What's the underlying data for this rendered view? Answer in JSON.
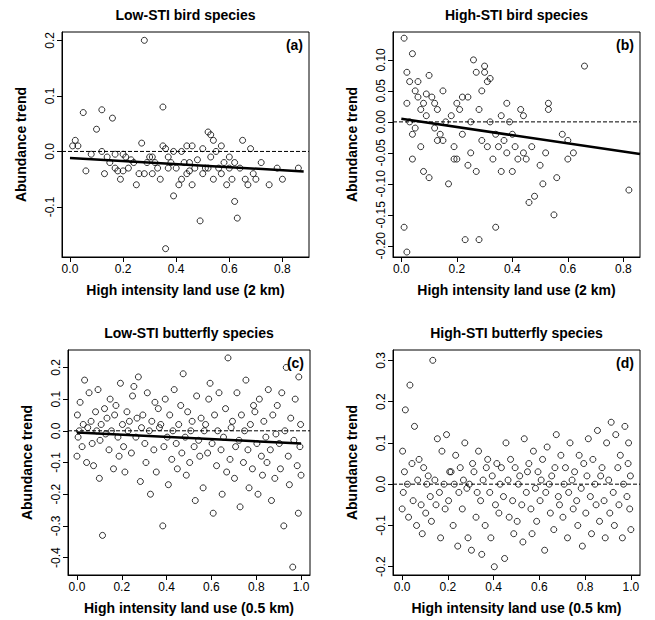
{
  "chart_data": [
    {
      "type": "scatter",
      "title": "Low-STI bird species",
      "panel_label": "(a)",
      "x_label": "High intensity land use (2 km)",
      "y_label": "Abundance trend",
      "xlim": [
        -0.03,
        0.9
      ],
      "xticks": [
        {
          "value": 0,
          "label": "0.0"
        },
        0.2,
        0.4,
        0.6,
        0.8
      ],
      "ylim": [
        -0.19,
        0.215
      ],
      "yticks": [
        -0.1,
        {
          "value": 0,
          "label": "0.0"
        },
        0.1,
        0.2
      ],
      "grid": false,
      "color": "#000000",
      "marker": "circle",
      "x": [
        0.01,
        0.02,
        0.03,
        0.05,
        0.06,
        0.1,
        0.08,
        0.12,
        0.15,
        0.14,
        0.17,
        0.17,
        0.18,
        0.2,
        0.2,
        0.22,
        0.23,
        0.24,
        0.25,
        0.26,
        0.27,
        0.28,
        0.28,
        0.29,
        0.3,
        0.31,
        0.32,
        0.33,
        0.34,
        0.35,
        0.35,
        0.36,
        0.36,
        0.37,
        0.37,
        0.38,
        0.39,
        0.39,
        0.4,
        0.41,
        0.42,
        0.42,
        0.43,
        0.44,
        0.45,
        0.45,
        0.46,
        0.47,
        0.48,
        0.49,
        0.5,
        0.5,
        0.51,
        0.52,
        0.53,
        0.53,
        0.54,
        0.54,
        0.55,
        0.56,
        0.57,
        0.57,
        0.58,
        0.59,
        0.6,
        0.61,
        0.62,
        0.62,
        0.63,
        0.64,
        0.65,
        0.66,
        0.67,
        0.68,
        0.69,
        0.7,
        0.72,
        0.75,
        0.78,
        0.8,
        0.86,
        0.12,
        0.13,
        0.16,
        0.19,
        0.21,
        0.31,
        0.44,
        0.46,
        0.52,
        0.6
      ],
      "values": [
        0.01,
        0.02,
        0.01,
        0.07,
        -0.035,
        0.04,
        -0.005,
        0,
        -0.02,
        -0.01,
        -0.005,
        -0.03,
        -0.035,
        -0.005,
        -0.035,
        -0.03,
        -0.015,
        -0.02,
        -0.06,
        -0.04,
        0.015,
        0.2,
        -0.04,
        -0.02,
        -0.01,
        -0.04,
        -0.02,
        -0.03,
        -0.05,
        0.08,
        0.01,
        0.005,
        -0.175,
        -0.01,
        -0.03,
        -0.02,
        0,
        -0.08,
        -0.03,
        -0.06,
        0,
        -0.05,
        -0.02,
        -0.04,
        -0.02,
        -0.035,
        -0.06,
        -0.03,
        -0.015,
        -0.125,
        -0.04,
        0.005,
        -0.03,
        0.035,
        0.03,
        -0.01,
        0.02,
        -0.05,
        0,
        -0.03,
        0.01,
        -0.04,
        -0.02,
        -0.06,
        -0.01,
        -0.05,
        -0.02,
        -0.09,
        -0.12,
        -0.03,
        0.02,
        -0.05,
        -0.06,
        0.005,
        -0.04,
        -0.05,
        -0.02,
        -0.06,
        -0.03,
        -0.05,
        -0.03,
        0.075,
        -0.04,
        0.06,
        -0.05,
        -0.01,
        -0.01,
        0.01,
        0.01,
        -0.03,
        -0.03
      ],
      "fit": {
        "x": [
          0,
          0.88
        ],
        "values": [
          -0.012,
          -0.036
        ],
        "line_style": "solid"
      },
      "reference_line": {
        "y": 0,
        "line_style": "dashed"
      }
    },
    {
      "type": "scatter",
      "title": "High-STI bird species",
      "panel_label": "(b)",
      "x_label": "High intensity land use (2 km)",
      "y_label": "Abundance trend",
      "xlim": [
        -0.03,
        0.86
      ],
      "xticks": [
        {
          "value": 0,
          "label": "0.0"
        },
        0.2,
        0.4,
        0.6,
        0.8
      ],
      "ylim": [
        -0.218,
        0.145
      ],
      "yticks": [
        {
          "value": -0.2,
          "label": "-0.20"
        },
        -0.15,
        {
          "value": -0.1,
          "label": "-0.10"
        },
        -0.05,
        {
          "value": 0,
          "label": "0.00"
        },
        0.05,
        {
          "value": 0.1,
          "label": "0.10"
        }
      ],
      "grid": false,
      "color": "#000000",
      "marker": "circle",
      "x": [
        0.01,
        0.01,
        0.02,
        0.02,
        0.02,
        0.03,
        0.03,
        0.04,
        0.04,
        0.05,
        0.05,
        0.06,
        0.06,
        0.07,
        0.07,
        0.08,
        0.08,
        0.09,
        0.09,
        0.1,
        0.1,
        0.11,
        0.12,
        0.12,
        0.13,
        0.14,
        0.15,
        0.15,
        0.16,
        0.17,
        0.18,
        0.19,
        0.2,
        0.2,
        0.21,
        0.22,
        0.23,
        0.24,
        0.25,
        0.25,
        0.26,
        0.27,
        0.27,
        0.28,
        0.28,
        0.29,
        0.29,
        0.3,
        0.3,
        0.31,
        0.31,
        0.32,
        0.32,
        0.33,
        0.34,
        0.34,
        0.35,
        0.36,
        0.37,
        0.38,
        0.39,
        0.4,
        0.4,
        0.41,
        0.42,
        0.43,
        0.44,
        0.45,
        0.46,
        0.47,
        0.5,
        0.52,
        0.53,
        0.53,
        0.55,
        0.56,
        0.58,
        0.6,
        0.6,
        0.62,
        0.66,
        0.82,
        0.04,
        0.13,
        0.19,
        0.22,
        0.24,
        0.36,
        0.38,
        0.44,
        0.48,
        0.51
      ],
      "values": [
        0.135,
        -0.17,
        -0.21,
        0.08,
        0.03,
        0.065,
        0,
        0.11,
        -0.02,
        0.05,
        -0.01,
        0.04,
        0.065,
        -0.04,
        0.02,
        -0.08,
        0.03,
        0.01,
        0.045,
        -0.09,
        0.075,
        0.04,
        -0.01,
        0.03,
        0.02,
        -0.02,
        0.05,
        -0.03,
        0,
        -0.1,
        0.01,
        -0.04,
        0.03,
        -0.06,
        0.02,
        -0.02,
        -0.19,
        0.04,
        0,
        -0.05,
        0.1,
        0.08,
        -0.08,
        0.02,
        -0.19,
        0.05,
        -0.03,
        0.09,
        0.08,
        0.065,
        -0.04,
        0.07,
        0,
        -0.06,
        -0.02,
        -0.17,
        -0.04,
        0.01,
        -0.03,
        -0.05,
        0,
        -0.02,
        -0.08,
        -0.04,
        -0.06,
        0.02,
        -0.05,
        -0.06,
        -0.13,
        -0.04,
        -0.07,
        -0.05,
        0.03,
        0.02,
        -0.15,
        -0.09,
        -0.02,
        -0.06,
        -0.03,
        -0.05,
        0.09,
        -0.11,
        -0.06,
        -0.03,
        -0.06,
        0.04,
        -0.07,
        -0.08,
        0.03,
        0.01,
        -0.12,
        -0.1
      ],
      "fit": {
        "x": [
          0,
          0.86
        ],
        "values": [
          0.005,
          -0.052
        ],
        "line_style": "solid"
      },
      "reference_line": {
        "y": 0,
        "line_style": "dashed"
      }
    },
    {
      "type": "scatter",
      "title": "Low-STI butterfly species",
      "panel_label": "(c)",
      "x_label": "High intensity land use (0.5 km)",
      "y_label": "Abundance trend",
      "xlim": [
        -0.04,
        1.04
      ],
      "xticks": [
        {
          "value": 0,
          "label": "0.0"
        },
        0.2,
        0.4,
        0.6,
        0.8,
        {
          "value": 1,
          "label": "1.0"
        }
      ],
      "ylim": [
        -0.455,
        0.255
      ],
      "yticks": [
        -0.4,
        -0.3,
        -0.2,
        -0.1,
        {
          "value": 0,
          "label": "0.0"
        },
        0.1,
        0.2
      ],
      "grid": false,
      "color": "#000000",
      "marker": "circle",
      "x": [
        0.002,
        0.005,
        0.01,
        0.0,
        0.014,
        0.023,
        0.028,
        0.034,
        0.043,
        0.048,
        0.054,
        0.063,
        0.068,
        0.074,
        0.083,
        0.088,
        0.094,
        0.103,
        0.108,
        0.1,
        0.114,
        0.123,
        0.128,
        0.134,
        0.143,
        0.148,
        0.154,
        0.163,
        0.168,
        0.174,
        0.183,
        0.188,
        0.194,
        0.203,
        0.208,
        0.214,
        0.223,
        0.228,
        0.234,
        0.243,
        0.248,
        0.254,
        0.263,
        0.268,
        0.274,
        0.283,
        0.288,
        0.294,
        0.303,
        0.308,
        0.314,
        0.323,
        0.328,
        0.334,
        0.343,
        0.348,
        0.354,
        0.363,
        0.368,
        0.374,
        0.383,
        0.388,
        0.394,
        0.403,
        0.408,
        0.414,
        0.423,
        0.428,
        0.434,
        0.443,
        0.448,
        0.454,
        0.463,
        0.468,
        0.474,
        0.483,
        0.488,
        0.494,
        0.503,
        0.508,
        0.514,
        0.523,
        0.528,
        0.534,
        0.543,
        0.548,
        0.554,
        0.563,
        0.568,
        0.574,
        0.583,
        0.588,
        0.594,
        0.603,
        0.608,
        0.614,
        0.623,
        0.628,
        0.634,
        0.643,
        0.648,
        0.654,
        0.663,
        0.668,
        0.674,
        0.683,
        0.688,
        0.694,
        0.703,
        0.708,
        0.714,
        0.723,
        0.728,
        0.734,
        0.743,
        0.748,
        0.754,
        0.763,
        0.768,
        0.774,
        0.783,
        0.788,
        0.794,
        0.803,
        0.808,
        0.814,
        0.823,
        0.828,
        0.834,
        0.843,
        0.848,
        0.854,
        0.863,
        0.868,
        0.874,
        0.883,
        0.888,
        0.894,
        0.903,
        0.908,
        0.914,
        0.923,
        0.928,
        0.934,
        0.943,
        0.948,
        0.954,
        0.963,
        0.968,
        0.974,
        0.983,
        0.988,
        0.99,
        0.995,
        0.998,
        1.0
      ],
      "values": [
        0.05,
        -0.02,
        0,
        -0.08,
        0.09,
        -0.05,
        0.02,
        0.16,
        -0.1,
        0.01,
        0.12,
        0.03,
        -0.04,
        -0.11,
        0.06,
        0,
        0.13,
        -0.03,
        0.02,
        -0.15,
        -0.33,
        0.07,
        -0.01,
        0.04,
        -0.06,
        0.1,
        0,
        -0.12,
        0.05,
        0.08,
        -0.02,
        -0.08,
        0.15,
        0.02,
        -0.05,
        -0.13,
        0.06,
        0,
        0.03,
        -0.07,
        0.11,
        0.14,
        -0.02,
        0.04,
        0.17,
        -0.16,
        0.01,
        0.05,
        -0.04,
        -0.1,
        0.12,
        0,
        -0.2,
        0.03,
        -0.06,
        0.09,
        -0.13,
        0.07,
        0.01,
        0.02,
        -0.3,
        -0.05,
        0.1,
        -0.02,
        -0.17,
        0.05,
        -0.09,
        0,
        0.13,
        -0.04,
        -0.12,
        0.02,
        0.08,
        -0.07,
        0.18,
        -0.02,
        -0.14,
        0.06,
        -0.1,
        0,
        0.03,
        -0.05,
        -0.22,
        0.11,
        -0.03,
        -0.08,
        0.04,
        -0.18,
        0,
        0.02,
        -0.07,
        0.1,
        0.15,
        -0.04,
        -0.26,
        0.05,
        -0.11,
        0,
        0.12,
        -0.06,
        -0.2,
        -0.02,
        0.07,
        -0.13,
        0.23,
        -0.09,
        0.01,
        0.03,
        -0.15,
        -0.05,
        0.12,
        -0.03,
        -0.24,
        0.05,
        -0.1,
        0,
        0.16,
        -0.06,
        -0.18,
        0.02,
        -0.12,
        0.08,
        0.06,
        -0.04,
        -0.2,
        0.1,
        -0.08,
        -0.14,
        0.03,
        -0.02,
        -0.1,
        0.13,
        -0.06,
        -0.22,
        0.05,
        -0.15,
        -0.01,
        0.08,
        -0.04,
        -0.12,
        0.12,
        -0.3,
        0,
        0.2,
        -0.08,
        -0.17,
        0.04,
        -0.43,
        -0.03,
        0.1,
        -0.11,
        -0.26,
        0.17,
        -0.05,
        0.02,
        -0.14
      ],
      "fit": {
        "x": [
          0,
          1
        ],
        "values": [
          -0.005,
          -0.04
        ],
        "line_style": "solid"
      },
      "reference_line": {
        "y": 0,
        "line_style": "dashed"
      }
    },
    {
      "type": "scatter",
      "title": "High-STI butterfly species",
      "panel_label": "(d)",
      "x_label": "High intensity land use (0.5 km)",
      "y_label": "Abundance trend",
      "xlim": [
        -0.04,
        1.04
      ],
      "xticks": [
        {
          "value": 0,
          "label": "0.0"
        },
        0.2,
        0.4,
        0.6,
        0.8,
        {
          "value": 1,
          "label": "1.0"
        }
      ],
      "ylim": [
        -0.22,
        0.325
      ],
      "yticks": [
        -0.2,
        -0.1,
        {
          "value": 0,
          "label": "0.0"
        },
        0.1,
        0.2,
        0.3
      ],
      "grid": false,
      "color": "#000000",
      "marker": "circle",
      "x": [
        0.002,
        0.005,
        0.01,
        0.0,
        0.014,
        0.023,
        0.028,
        0.034,
        0.043,
        0.048,
        0.054,
        0.063,
        0.068,
        0.074,
        0.083,
        0.088,
        0.094,
        0.103,
        0.108,
        0.114,
        0.123,
        0.128,
        0.134,
        0.143,
        0.148,
        0.154,
        0.163,
        0.168,
        0.174,
        0.183,
        0.188,
        0.194,
        0.203,
        0.208,
        0.214,
        0.223,
        0.228,
        0.234,
        0.243,
        0.248,
        0.254,
        0.263,
        0.268,
        0.274,
        0.283,
        0.288,
        0.294,
        0.303,
        0.308,
        0.314,
        0.323,
        0.328,
        0.334,
        0.343,
        0.348,
        0.354,
        0.363,
        0.368,
        0.374,
        0.383,
        0.388,
        0.394,
        0.403,
        0.408,
        0.414,
        0.423,
        0.428,
        0.434,
        0.443,
        0.448,
        0.454,
        0.463,
        0.468,
        0.474,
        0.483,
        0.488,
        0.494,
        0.503,
        0.508,
        0.514,
        0.523,
        0.528,
        0.534,
        0.543,
        0.548,
        0.554,
        0.563,
        0.568,
        0.574,
        0.583,
        0.588,
        0.594,
        0.603,
        0.608,
        0.614,
        0.623,
        0.628,
        0.634,
        0.643,
        0.648,
        0.654,
        0.663,
        0.668,
        0.674,
        0.683,
        0.688,
        0.694,
        0.703,
        0.708,
        0.714,
        0.723,
        0.728,
        0.734,
        0.743,
        0.748,
        0.754,
        0.763,
        0.768,
        0.774,
        0.783,
        0.788,
        0.794,
        0.803,
        0.808,
        0.814,
        0.823,
        0.828,
        0.834,
        0.843,
        0.848,
        0.854,
        0.863,
        0.868,
        0.874,
        0.883,
        0.888,
        0.894,
        0.903,
        0.908,
        0.914,
        0.923,
        0.928,
        0.934,
        0.943,
        0.948,
        0.954,
        0.963,
        0.968,
        0.974,
        0.983,
        0.988,
        0.99,
        0.995,
        0.998,
        1.0
      ],
      "values": [
        0.08,
        -0.02,
        0.03,
        -0.06,
        0.18,
        0,
        -0.08,
        0.24,
        0.05,
        -0.04,
        0.14,
        -0.1,
        0.01,
        0.06,
        -0.05,
        -0.12,
        0.04,
        -0.07,
        0,
        0.02,
        -0.03,
        -0.09,
        0.3,
        0.01,
        -0.05,
        0.11,
        -0.02,
        -0.13,
        0.08,
        0,
        -0.06,
        0.12,
        -0.04,
        0.03,
        0.03,
        -0.1,
        0,
        0.07,
        -0.15,
        -0.02,
        0.04,
        -0.06,
        0.01,
        0.1,
        -0.01,
        -0.13,
        0,
        -0.16,
        0.05,
        0.03,
        -0.08,
        -0.02,
        0.08,
        -0.04,
        -0.17,
        0.01,
        -0.1,
        0.04,
        0.06,
        -0.02,
        -0.13,
        0.02,
        -0.2,
        -0.05,
        0.05,
        -0.07,
        0,
        0.04,
        -0.03,
        -0.18,
        0.1,
        0.01,
        -0.08,
        0.06,
        -0.04,
        -0.12,
        0.04,
        -0.09,
        0,
        0.02,
        -0.05,
        -0.14,
        0.11,
        -0.02,
        0.03,
        0.05,
        -0.06,
        -0.12,
        0.08,
        -0.01,
        -0.09,
        0.03,
        -0.04,
        0.01,
        0.06,
        -0.16,
        -0.02,
        0.09,
        0,
        -0.07,
        0.02,
        -0.11,
        0.04,
        0.12,
        -0.03,
        -0.05,
        0.07,
        -0.08,
        0,
        0.04,
        -0.13,
        -0.02,
        0.1,
        0.01,
        -0.06,
        0.03,
        -0.04,
        -0.1,
        0.07,
        -0.01,
        -0.15,
        0.05,
        -0.07,
        0.02,
        0.11,
        -0.03,
        -0.12,
        0.06,
        0,
        -0.05,
        0.13,
        -0.09,
        0.02,
        0.04,
        -0.04,
        -0.13,
        0.1,
        0.01,
        -0.07,
        0.15,
        -0.02,
        -0.1,
        0.12,
        0.04,
        -0.05,
        0.07,
        -0.13,
        0,
        0.14,
        -0.03,
        0.05,
        0.1,
        -0.06,
        0.02,
        -0.11
      ],
      "reference_line": {
        "y": 0,
        "line_style": "dashed"
      }
    }
  ]
}
